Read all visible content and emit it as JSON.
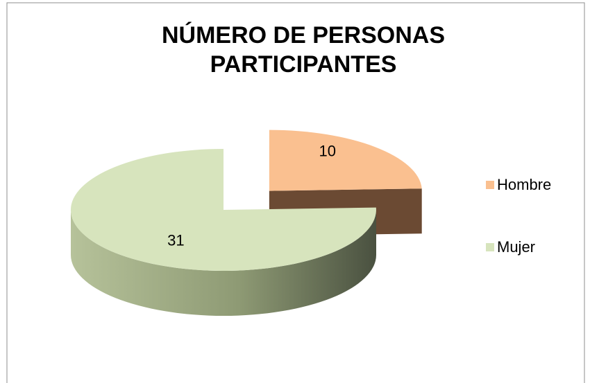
{
  "chart_data": {
    "type": "pie",
    "title": "NÚMERO DE PERSONAS PARTICIPANTES",
    "categories": [
      "Hombre",
      "Mujer"
    ],
    "values": [
      10,
      31
    ],
    "colors": [
      "#fac090",
      "#d7e4bd"
    ],
    "exploded": [
      true,
      false
    ],
    "legend": "right"
  }
}
